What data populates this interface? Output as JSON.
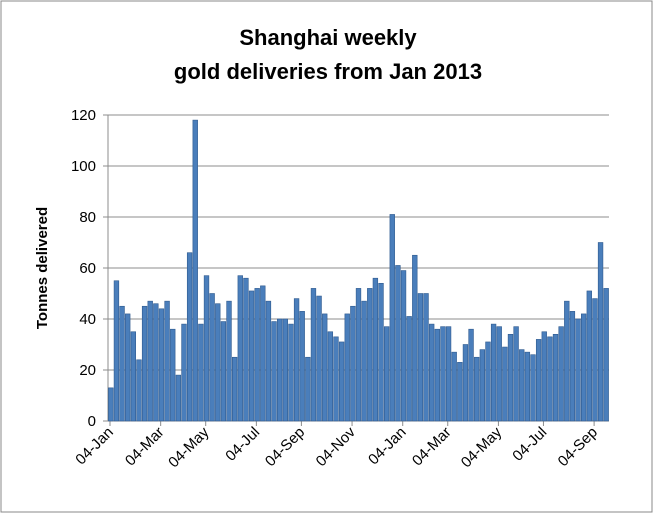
{
  "chart_data": {
    "type": "bar",
    "title": [
      "Shanghai weekly",
      "gold deliveries from Jan 2013"
    ],
    "y_label": "Tonnes delivered",
    "categories": [
      "04-Jan",
      null,
      null,
      null,
      null,
      null,
      null,
      null,
      null,
      "04-Mar",
      null,
      null,
      null,
      null,
      null,
      null,
      null,
      "04-May",
      null,
      null,
      null,
      null,
      null,
      null,
      null,
      null,
      "04-Jul",
      null,
      null,
      null,
      null,
      null,
      null,
      null,
      "04-Sep",
      null,
      null,
      null,
      null,
      null,
      null,
      null,
      null,
      "04-Nov",
      null,
      null,
      null,
      null,
      null,
      null,
      null,
      null,
      "04-Jan",
      null,
      null,
      null,
      null,
      null,
      null,
      null,
      "04-Mar",
      null,
      null,
      null,
      null,
      null,
      null,
      null,
      null,
      "04-May",
      null,
      null,
      null,
      null,
      null,
      null,
      null,
      "04-Jul",
      null,
      null,
      null,
      null,
      null,
      null,
      null,
      null,
      "04-Sep",
      null,
      null
    ],
    "values": [
      13,
      55,
      45,
      42,
      35,
      24,
      45,
      47,
      46,
      44,
      47,
      36,
      18,
      38,
      66,
      118,
      38,
      57,
      50,
      46,
      39,
      47,
      25,
      57,
      56,
      51,
      52,
      53,
      47,
      39,
      40,
      40,
      38,
      48,
      43,
      25,
      52,
      49,
      42,
      35,
      33,
      31,
      42,
      45,
      52,
      47,
      52,
      56,
      54,
      37,
      81,
      61,
      59,
      41,
      65,
      50,
      50,
      38,
      36,
      37,
      37,
      27,
      23,
      30,
      36,
      25,
      28,
      31,
      38,
      37,
      29,
      34,
      37,
      28,
      27,
      26,
      32,
      35,
      33,
      34,
      37,
      47,
      43,
      40,
      42,
      51,
      48,
      70,
      52
    ],
    "color": "#4a7ebb",
    "ylim": [
      0,
      120
    ],
    "yticks": [
      0,
      20,
      40,
      60,
      80,
      100,
      120
    ],
    "grid": true
  }
}
